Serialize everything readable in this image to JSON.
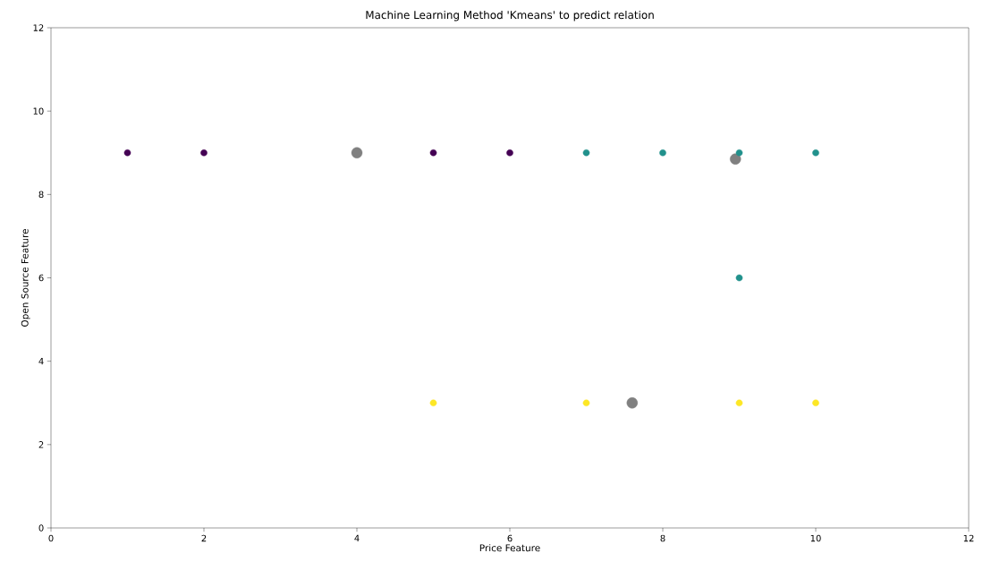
{
  "chart_data": {
    "type": "scatter",
    "title": "Machine Learning Method 'Kmeans' to predict relation",
    "xlabel": "Price Feature",
    "ylabel": "Open Source Feature",
    "xlim": [
      0,
      12
    ],
    "ylim": [
      0,
      12
    ],
    "xticks": [
      0,
      2,
      4,
      6,
      8,
      10,
      12
    ],
    "yticks": [
      0,
      2,
      4,
      6,
      8,
      10,
      12
    ],
    "series": [
      {
        "color": "#808080",
        "x": [
          4,
          8.95,
          7.6
        ],
        "values": [
          9,
          8.85,
          3
        ]
      },
      {
        "color": "#440154",
        "x": [
          1,
          2,
          5,
          6
        ],
        "values": [
          9,
          9,
          9,
          9
        ]
      },
      {
        "color": "#21918c",
        "x": [
          7,
          8,
          9,
          10,
          9
        ],
        "values": [
          9,
          9,
          9,
          9,
          6
        ]
      },
      {
        "color": "#fde725",
        "x": [
          5,
          7,
          9,
          10
        ],
        "values": [
          3,
          3,
          3,
          3
        ]
      }
    ]
  }
}
